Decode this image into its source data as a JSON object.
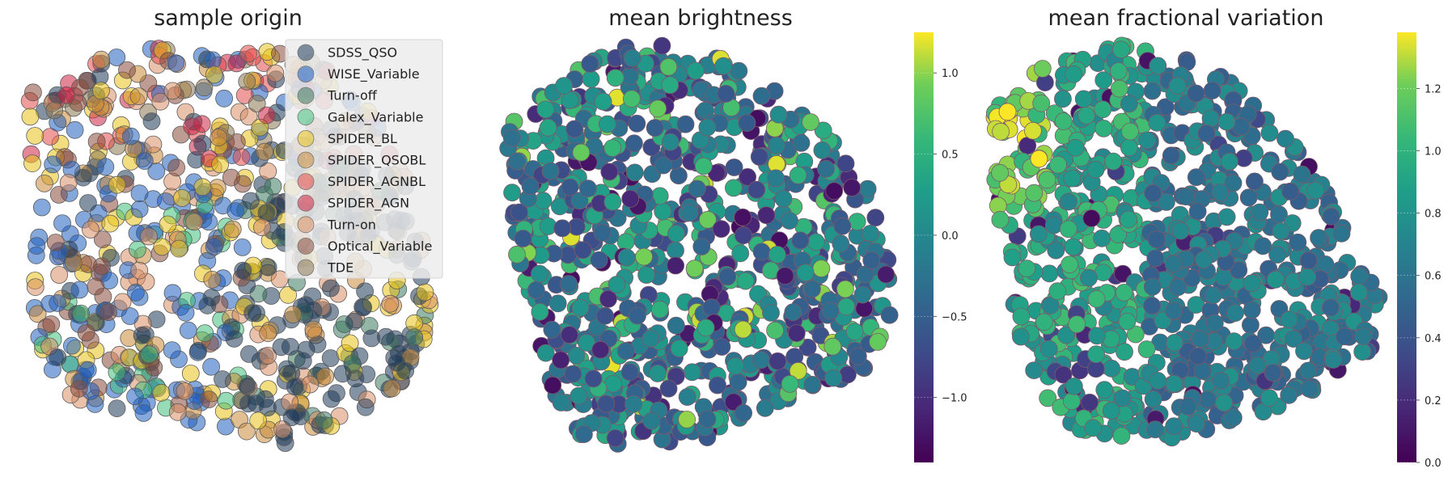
{
  "chart_data": [
    {
      "type": "scatter",
      "title": "sample origin",
      "legend": {
        "placement": "upper-right",
        "entries": [
          {
            "name": "SDSS_QSO",
            "color": "#1f3b5a"
          },
          {
            "name": "WISE_Variable",
            "color": "#1f5fbf"
          },
          {
            "name": "Turn-off",
            "color": "#3d7a60"
          },
          {
            "name": "Galex_Variable",
            "color": "#3fbf7a"
          },
          {
            "name": "SPIDER_BL",
            "color": "#e8c21a"
          },
          {
            "name": "SPIDER_QSOBL",
            "color": "#c88b3a"
          },
          {
            "name": "SPIDER_AGNBL",
            "color": "#e64b4b"
          },
          {
            "name": "SPIDER_AGN",
            "color": "#cc2244"
          },
          {
            "name": "Turn-on",
            "color": "#d99066"
          },
          {
            "name": "Optical_Variable",
            "color": "#8a4a3a"
          },
          {
            "name": "TDE",
            "color": "#8a7650"
          }
        ]
      },
      "axes_visible": false
    },
    {
      "type": "scatter",
      "title": "mean brightness",
      "colormap": "viridis",
      "colorbar": {
        "min": -1.4,
        "max": 1.25,
        "ticks": [
          "1.0",
          "0.5",
          "0.0",
          "−0.5",
          "−1.0"
        ],
        "tick_values": [
          1.0,
          0.5,
          0.0,
          -0.5,
          -1.0
        ]
      },
      "axes_visible": false
    },
    {
      "type": "scatter",
      "title": "mean fractional variation",
      "colormap": "viridis",
      "colorbar": {
        "min": 0.0,
        "max": 1.38,
        "ticks": [
          "1.2",
          "1.0",
          "0.8",
          "0.6",
          "0.4",
          "0.2",
          "0.0"
        ],
        "tick_values": [
          1.2,
          1.0,
          0.8,
          0.6,
          0.4,
          0.2,
          0.0
        ]
      },
      "axes_visible": false
    }
  ]
}
